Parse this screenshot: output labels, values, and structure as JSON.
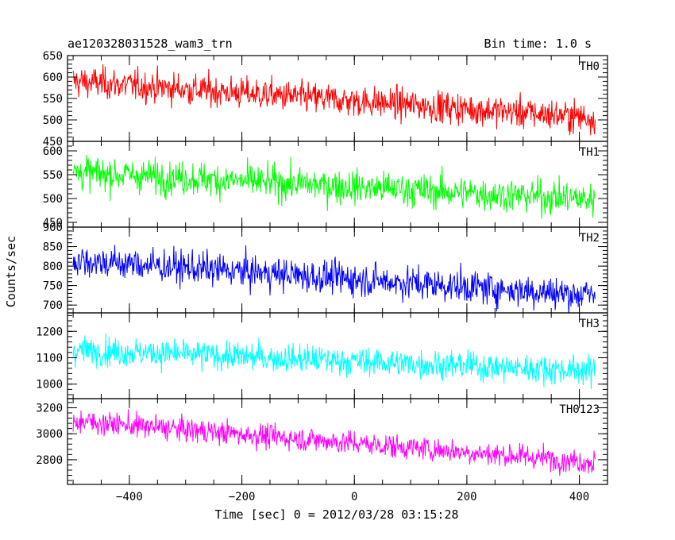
{
  "chart_data": {
    "type": "line",
    "title_left": "ae120328031528_wam3_trn",
    "title_right": "Bin time: 1.0 s",
    "xlabel": "Time [sec] 0 = 2012/03/28 03:15:28",
    "ylabel": "Counts/sec",
    "xlim": [
      -510,
      450
    ],
    "x_range": [
      -500,
      428
    ],
    "x_ticks": [
      -400,
      -200,
      0,
      200,
      400
    ],
    "x_tick_labels": [
      "−400",
      "−200",
      "0",
      "200",
      "400"
    ],
    "panels": [
      {
        "name": "TH0",
        "color": "#ff0000",
        "ylim": [
          450,
          650
        ],
        "y_ticks": [
          450,
          500,
          550,
          600,
          650
        ],
        "y_tick_labels": [
          "450",
          "500",
          "550",
          "600",
          "650"
        ],
        "start_mean": 590,
        "end_mean": 505,
        "spread": 26
      },
      {
        "name": "TH1",
        "color": "#00ff00",
        "ylim": [
          440,
          620
        ],
        "y_ticks": [
          450,
          500,
          550,
          600
        ],
        "y_tick_labels": [
          "450",
          "500",
          "550",
          "600"
        ],
        "start_mean": 555,
        "end_mean": 498,
        "spread": 25
      },
      {
        "name": "TH2",
        "color": "#0000ff",
        "ylim": [
          680,
          900
        ],
        "y_ticks": [
          700,
          750,
          800,
          850,
          900
        ],
        "y_tick_labels": [
          "700",
          "750",
          "800",
          "850",
          "900"
        ],
        "start_mean": 815,
        "end_mean": 725,
        "spread": 30
      },
      {
        "name": "TH3",
        "color": "#00ffff",
        "ylim": [
          945,
          1270
        ],
        "y_ticks": [
          1000,
          1100,
          1200
        ],
        "y_tick_labels": [
          "1000",
          "1100",
          "1200"
        ],
        "start_mean": 1130,
        "end_mean": 1050,
        "spread": 38
      },
      {
        "name": "TH0123",
        "color": "#ff00ff",
        "ylim": [
          2610,
          3270
        ],
        "y_ticks": [
          2800,
          3000,
          3200
        ],
        "y_tick_labels": [
          "2800",
          "3000",
          "3200"
        ],
        "start_mean": 3100,
        "end_mean": 2780,
        "spread": 65
      }
    ],
    "grid": false,
    "legend": "panel labels top-right"
  }
}
